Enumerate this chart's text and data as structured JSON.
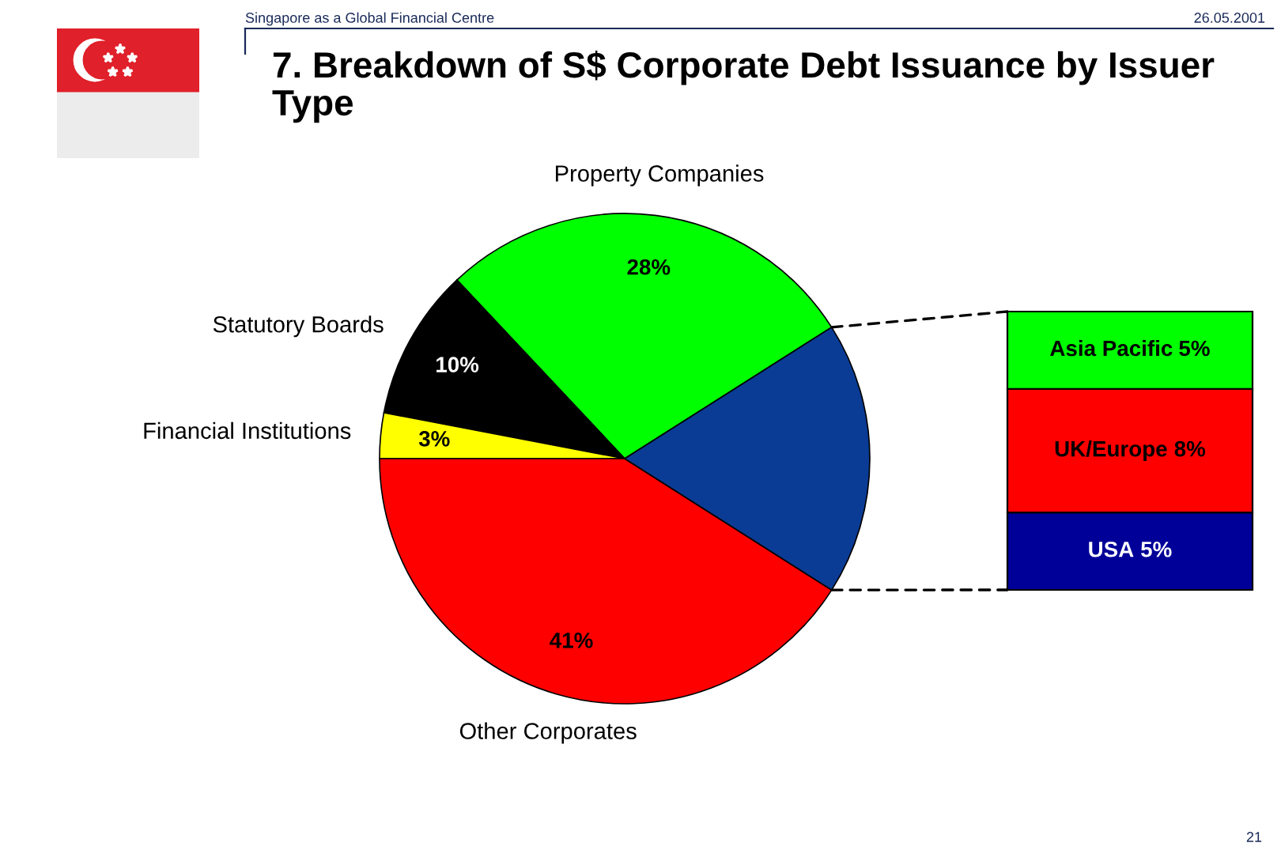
{
  "chart_data": [
    {
      "type": "pie",
      "title": "7. Breakdown of S$ Corporate Debt Issuance by Issuer Type",
      "categories": [
        "Property Companies",
        "Statutory Boards",
        "Financial Institutions",
        "Other Corporates",
        null
      ],
      "values": [
        28,
        10,
        3,
        41,
        18
      ],
      "colors": [
        "#00ff00",
        "#000000",
        "#ffff00",
        "#ff0000",
        "#0a3c96"
      ],
      "value_labels": [
        "28%",
        "10%",
        "3%",
        "41%",
        null
      ],
      "annotations": [
        "Singapore as a Global Financial Centre",
        "26.05.2001",
        "21"
      ]
    },
    {
      "type": "bar",
      "stacked": true,
      "categories": [
        null
      ],
      "series": [
        {
          "name": "USA",
          "color": "#000099",
          "values": [
            5
          ],
          "value_labels": [
            "5%"
          ]
        },
        {
          "name": "UK/Europe",
          "color": "#ff0000",
          "values": [
            8
          ],
          "value_labels": [
            "8%"
          ]
        },
        {
          "name": "Asia Pacific",
          "color": "#00ff00",
          "values": [
            5
          ],
          "value_labels": [
            "5%"
          ]
        }
      ]
    }
  ]
}
